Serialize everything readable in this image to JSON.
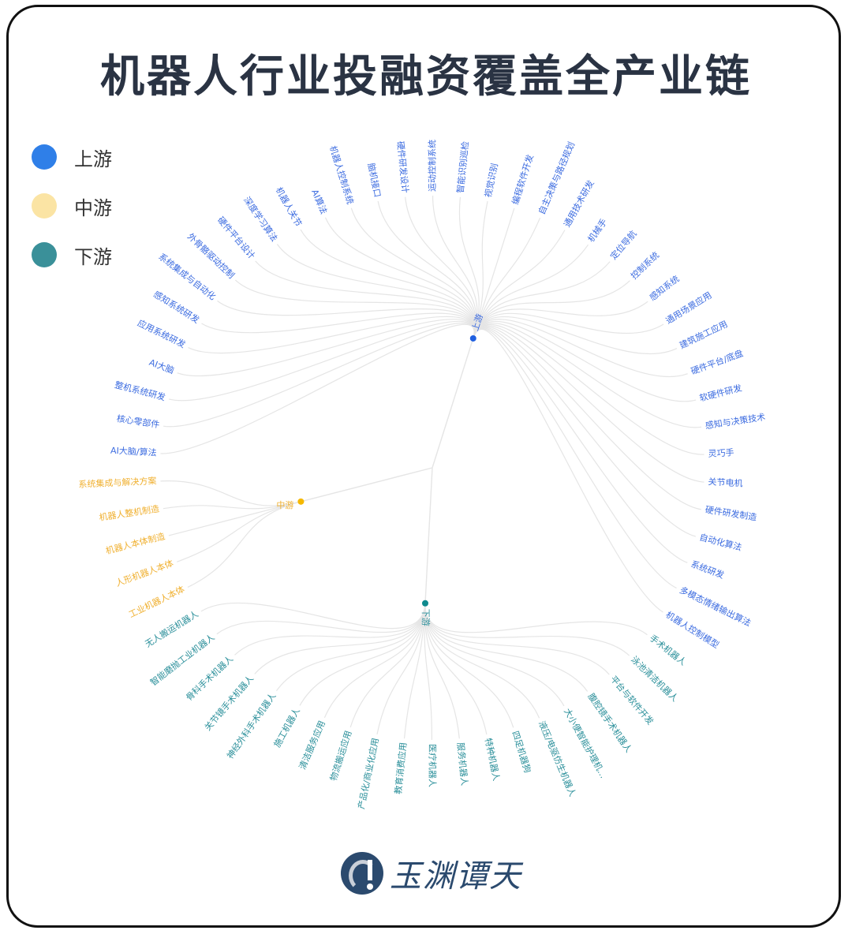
{
  "title": "机器人行业投融资覆盖全产业链",
  "legend": [
    {
      "label": "上游",
      "color": "#2f7fe8"
    },
    {
      "label": "中游",
      "color": "#fbe4a4"
    },
    {
      "label": "下游",
      "color": "#3a9099"
    }
  ],
  "tree": {
    "link_color": "#e5e5e5",
    "branches": [
      {
        "name": "上游",
        "node_color": "#1f5fe0",
        "label_color": "#3b6be0",
        "children": [
          "AI大脑/算法",
          "核心零部件",
          "整机系统研发",
          "AI大脑",
          "应用系统研发",
          "感知系统研发",
          "系统集成与自动化",
          "外骨骼驱动控制",
          "硬件平台设计",
          "深度学习算法",
          "机器人关节",
          "AI算法",
          "机器人控制系统",
          "脑机接口",
          "硬件研发设计",
          "运动控制系统",
          "智能识别巡检",
          "视觉识别",
          "编程软件开发",
          "自主决策与路径规划",
          "通用技术研发",
          "机械手",
          "定位导航",
          "控制系统",
          "感知系统",
          "通用场景应用",
          "建筑施工应用",
          "硬件平台/底盘",
          "软硬件研发",
          "感知与决策技术",
          "灵巧手",
          "关节电机",
          "硬件研发制造",
          "自动化算法",
          "系统研发",
          "多模态情绪输出算法",
          "机器人控制模型"
        ]
      },
      {
        "name": "下游",
        "node_color": "#0e8a8e",
        "label_color": "#2a8f9a",
        "children": [
          "手术机器人",
          "泳池清洁机器人",
          "平台与软件开发",
          "腹腔镜手术机器人",
          "大小便智能护理机…",
          "液压/电驱仿生机器人",
          "四足机器狗",
          "特种机器人",
          "服务机器人",
          "医疗机器人",
          "教育消费应用",
          "产品化/商业化应用",
          "物流搬运应用",
          "清洁服务应用",
          "施工机器人",
          "神经外科手术机器人",
          "关节镜手术机器人",
          "骨科手术机器人",
          "智能磨抛工业机器人",
          "无人搬运机器人"
        ]
      },
      {
        "name": "中游",
        "node_color": "#f5b800",
        "label_color": "#f0b030",
        "children": [
          "工业机器人本体",
          "人形机器人本体",
          "机器人本体制造",
          "机器人整机制造",
          "系统集成与解决方案"
        ]
      }
    ]
  },
  "logo": {
    "text": "玉渊谭天"
  }
}
